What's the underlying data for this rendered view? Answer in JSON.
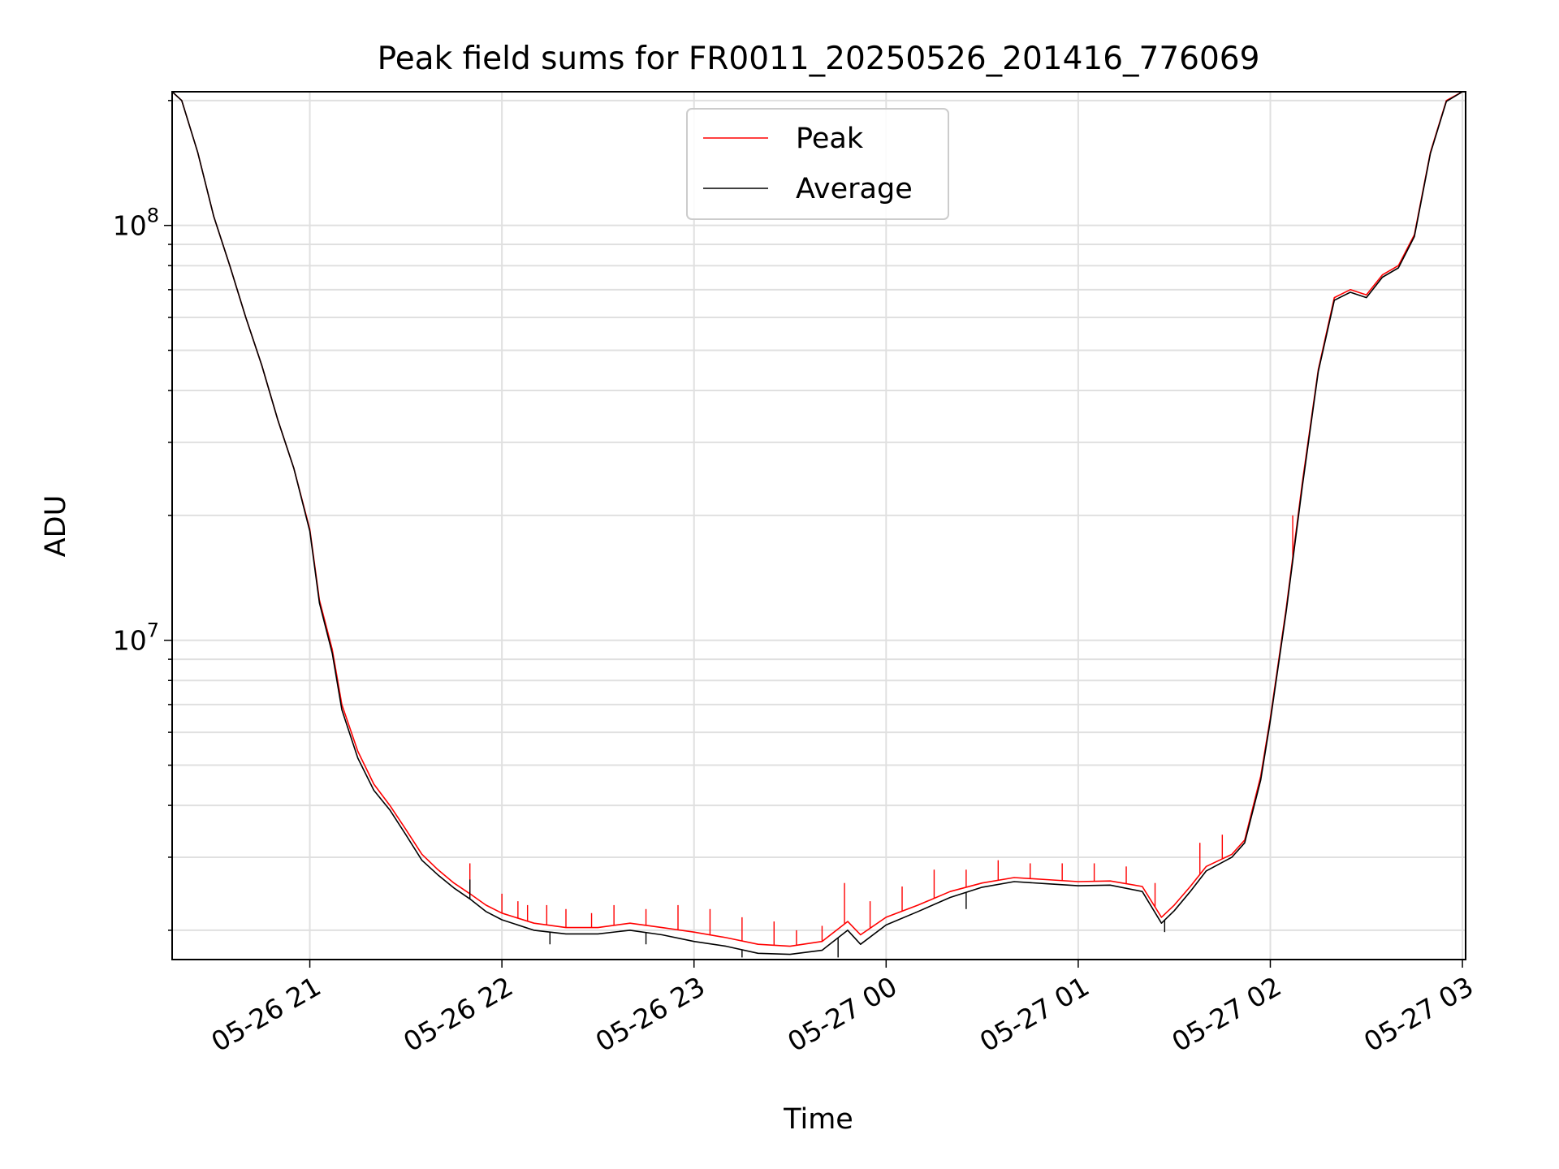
{
  "chart_data": {
    "type": "line",
    "title": "Peak field sums for FR0011_20250526_201416_776069",
    "xlabel": "Time",
    "ylabel": "ADU",
    "yscale": "log",
    "ylim": [
      1700000,
      210000000
    ],
    "xlim": [
      "05-26 20:17",
      "05-27 03:01"
    ],
    "grid": true,
    "legend_position": "top-center",
    "x_ticks": [
      "05-26 21",
      "05-26 22",
      "05-26 23",
      "05-27 00",
      "05-27 01",
      "05-27 02",
      "05-27 03"
    ],
    "y_ticks": [
      {
        "value": 10000000,
        "base": "10",
        "exp": "7"
      },
      {
        "value": 100000000,
        "base": "10",
        "exp": "8"
      }
    ],
    "series": [
      {
        "name": "Peak",
        "color": "#ff0000",
        "points": [
          [
            "05-26 20:17",
            210000000
          ],
          [
            "05-26 20:20",
            200000000
          ],
          [
            "05-26 20:25",
            150000000
          ],
          [
            "05-26 20:30",
            105000000
          ],
          [
            "05-26 20:35",
            80000000
          ],
          [
            "05-26 20:40",
            60000000
          ],
          [
            "05-26 20:45",
            46000000
          ],
          [
            "05-26 20:50",
            34000000
          ],
          [
            "05-26 20:55",
            26000000
          ],
          [
            "05-26 21:00",
            18500000
          ],
          [
            "05-26 21:03",
            12500000
          ],
          [
            "05-26 21:07",
            9500000
          ],
          [
            "05-26 21:10",
            7000000
          ],
          [
            "05-26 21:15",
            5400000
          ],
          [
            "05-26 21:20",
            4500000
          ],
          [
            "05-26 21:25",
            4000000
          ],
          [
            "05-26 21:30",
            3500000
          ],
          [
            "05-26 21:35",
            3050000
          ],
          [
            "05-26 21:40",
            2800000
          ],
          [
            "05-26 21:45",
            2600000
          ],
          [
            "05-26 21:50",
            2450000
          ],
          [
            "05-26 21:55",
            2300000
          ],
          [
            "05-26 22:00",
            2200000
          ],
          [
            "05-26 22:10",
            2080000
          ],
          [
            "05-26 22:20",
            2030000
          ],
          [
            "05-26 22:30",
            2030000
          ],
          [
            "05-26 22:40",
            2080000
          ],
          [
            "05-26 22:50",
            2030000
          ],
          [
            "05-26 23:00",
            1980000
          ],
          [
            "05-26 23:10",
            1920000
          ],
          [
            "05-26 23:20",
            1850000
          ],
          [
            "05-26 23:30",
            1830000
          ],
          [
            "05-26 23:40",
            1880000
          ],
          [
            "05-26 23:48",
            2100000
          ],
          [
            "05-26 23:52",
            1950000
          ],
          [
            "05-27 00:00",
            2150000
          ],
          [
            "05-27 00:10",
            2300000
          ],
          [
            "05-27 00:20",
            2480000
          ],
          [
            "05-27 00:30",
            2600000
          ],
          [
            "05-27 00:40",
            2680000
          ],
          [
            "05-27 00:50",
            2650000
          ],
          [
            "05-27 01:00",
            2620000
          ],
          [
            "05-27 01:10",
            2630000
          ],
          [
            "05-27 01:20",
            2550000
          ],
          [
            "05-27 01:26",
            2150000
          ],
          [
            "05-27 01:30",
            2300000
          ],
          [
            "05-27 01:35",
            2550000
          ],
          [
            "05-27 01:40",
            2850000
          ],
          [
            "05-27 01:48",
            3050000
          ],
          [
            "05-27 01:52",
            3300000
          ],
          [
            "05-27 01:57",
            4700000
          ],
          [
            "05-27 02:00",
            6500000
          ],
          [
            "05-27 02:05",
            12000000
          ],
          [
            "05-27 02:10",
            24000000
          ],
          [
            "05-27 02:15",
            45000000
          ],
          [
            "05-27 02:20",
            67000000
          ],
          [
            "05-27 02:25",
            70000000
          ],
          [
            "05-27 02:30",
            68000000
          ],
          [
            "05-27 02:35",
            76000000
          ],
          [
            "05-27 02:40",
            80000000
          ],
          [
            "05-27 02:45",
            95000000
          ],
          [
            "05-27 02:50",
            150000000
          ],
          [
            "05-27 02:55",
            200000000
          ],
          [
            "05-27 03:00",
            210000000
          ]
        ],
        "spikes": [
          [
            "05-26 21:50",
            2900000
          ],
          [
            "05-26 22:00",
            2450000
          ],
          [
            "05-26 22:05",
            2350000
          ],
          [
            "05-26 22:08",
            2300000
          ],
          [
            "05-26 22:14",
            2300000
          ],
          [
            "05-26 22:20",
            2250000
          ],
          [
            "05-26 22:28",
            2200000
          ],
          [
            "05-26 22:35",
            2300000
          ],
          [
            "05-26 22:45",
            2250000
          ],
          [
            "05-26 22:55",
            2300000
          ],
          [
            "05-26 23:05",
            2250000
          ],
          [
            "05-26 23:15",
            2150000
          ],
          [
            "05-26 23:25",
            2100000
          ],
          [
            "05-26 23:32",
            2000000
          ],
          [
            "05-26 23:40",
            2050000
          ],
          [
            "05-26 23:47",
            2600000
          ],
          [
            "05-26 23:55",
            2350000
          ],
          [
            "05-27 00:05",
            2550000
          ],
          [
            "05-27 00:15",
            2800000
          ],
          [
            "05-27 00:25",
            2800000
          ],
          [
            "05-27 00:35",
            2950000
          ],
          [
            "05-27 00:45",
            2900000
          ],
          [
            "05-27 00:55",
            2900000
          ],
          [
            "05-27 01:05",
            2900000
          ],
          [
            "05-27 01:15",
            2850000
          ],
          [
            "05-27 01:24",
            2600000
          ],
          [
            "05-27 01:38",
            3250000
          ],
          [
            "05-27 01:45",
            3400000
          ],
          [
            "05-27 02:07",
            20000000
          ]
        ]
      },
      {
        "name": "Average",
        "color": "#000000",
        "points": [
          [
            "05-26 20:17",
            210000000
          ],
          [
            "05-26 20:20",
            200000000
          ],
          [
            "05-26 20:25",
            150000000
          ],
          [
            "05-26 20:30",
            105000000
          ],
          [
            "05-26 20:35",
            80000000
          ],
          [
            "05-26 20:40",
            60000000
          ],
          [
            "05-26 20:45",
            46000000
          ],
          [
            "05-26 20:50",
            34000000
          ],
          [
            "05-26 20:55",
            26000000
          ],
          [
            "05-26 21:00",
            18300000
          ],
          [
            "05-26 21:03",
            12300000
          ],
          [
            "05-26 21:07",
            9300000
          ],
          [
            "05-26 21:10",
            6800000
          ],
          [
            "05-26 21:15",
            5200000
          ],
          [
            "05-26 21:20",
            4350000
          ],
          [
            "05-26 21:25",
            3900000
          ],
          [
            "05-26 21:30",
            3400000
          ],
          [
            "05-26 21:35",
            2950000
          ],
          [
            "05-26 21:40",
            2720000
          ],
          [
            "05-26 21:45",
            2530000
          ],
          [
            "05-26 21:50",
            2380000
          ],
          [
            "05-26 21:55",
            2220000
          ],
          [
            "05-26 22:00",
            2120000
          ],
          [
            "05-26 22:10",
            2000000
          ],
          [
            "05-26 22:20",
            1960000
          ],
          [
            "05-26 22:30",
            1960000
          ],
          [
            "05-26 22:40",
            2000000
          ],
          [
            "05-26 22:50",
            1950000
          ],
          [
            "05-26 23:00",
            1880000
          ],
          [
            "05-26 23:10",
            1830000
          ],
          [
            "05-26 23:20",
            1760000
          ],
          [
            "05-26 23:30",
            1750000
          ],
          [
            "05-26 23:40",
            1790000
          ],
          [
            "05-26 23:48",
            2000000
          ],
          [
            "05-26 23:52",
            1850000
          ],
          [
            "05-27 00:00",
            2060000
          ],
          [
            "05-27 00:10",
            2220000
          ],
          [
            "05-27 00:20",
            2400000
          ],
          [
            "05-27 00:30",
            2540000
          ],
          [
            "05-27 00:40",
            2620000
          ],
          [
            "05-27 00:50",
            2590000
          ],
          [
            "05-27 01:00",
            2560000
          ],
          [
            "05-27 01:10",
            2570000
          ],
          [
            "05-27 01:20",
            2480000
          ],
          [
            "05-27 01:26",
            2080000
          ],
          [
            "05-27 01:30",
            2230000
          ],
          [
            "05-27 01:35",
            2480000
          ],
          [
            "05-27 01:40",
            2780000
          ],
          [
            "05-27 01:48",
            3000000
          ],
          [
            "05-27 01:52",
            3250000
          ],
          [
            "05-27 01:57",
            4600000
          ],
          [
            "05-27 02:00",
            6400000
          ],
          [
            "05-27 02:05",
            11800000
          ],
          [
            "05-27 02:10",
            23500000
          ],
          [
            "05-27 02:15",
            44500000
          ],
          [
            "05-27 02:20",
            66000000
          ],
          [
            "05-27 02:25",
            69000000
          ],
          [
            "05-27 02:30",
            67000000
          ],
          [
            "05-27 02:35",
            75000000
          ],
          [
            "05-27 02:40",
            79000000
          ],
          [
            "05-27 02:45",
            94000000
          ],
          [
            "05-27 02:50",
            149000000
          ],
          [
            "05-27 02:55",
            199000000
          ],
          [
            "05-27 03:00",
            210000000
          ]
        ],
        "spikes": [
          [
            "05-26 21:50",
            2650000
          ],
          [
            "05-26 22:15",
            1850000
          ],
          [
            "05-26 22:45",
            1850000
          ],
          [
            "05-26 23:15",
            1720000
          ],
          [
            "05-26 23:45",
            1720000
          ],
          [
            "05-27 00:25",
            2250000
          ],
          [
            "05-27 01:27",
            1980000
          ]
        ]
      }
    ]
  }
}
